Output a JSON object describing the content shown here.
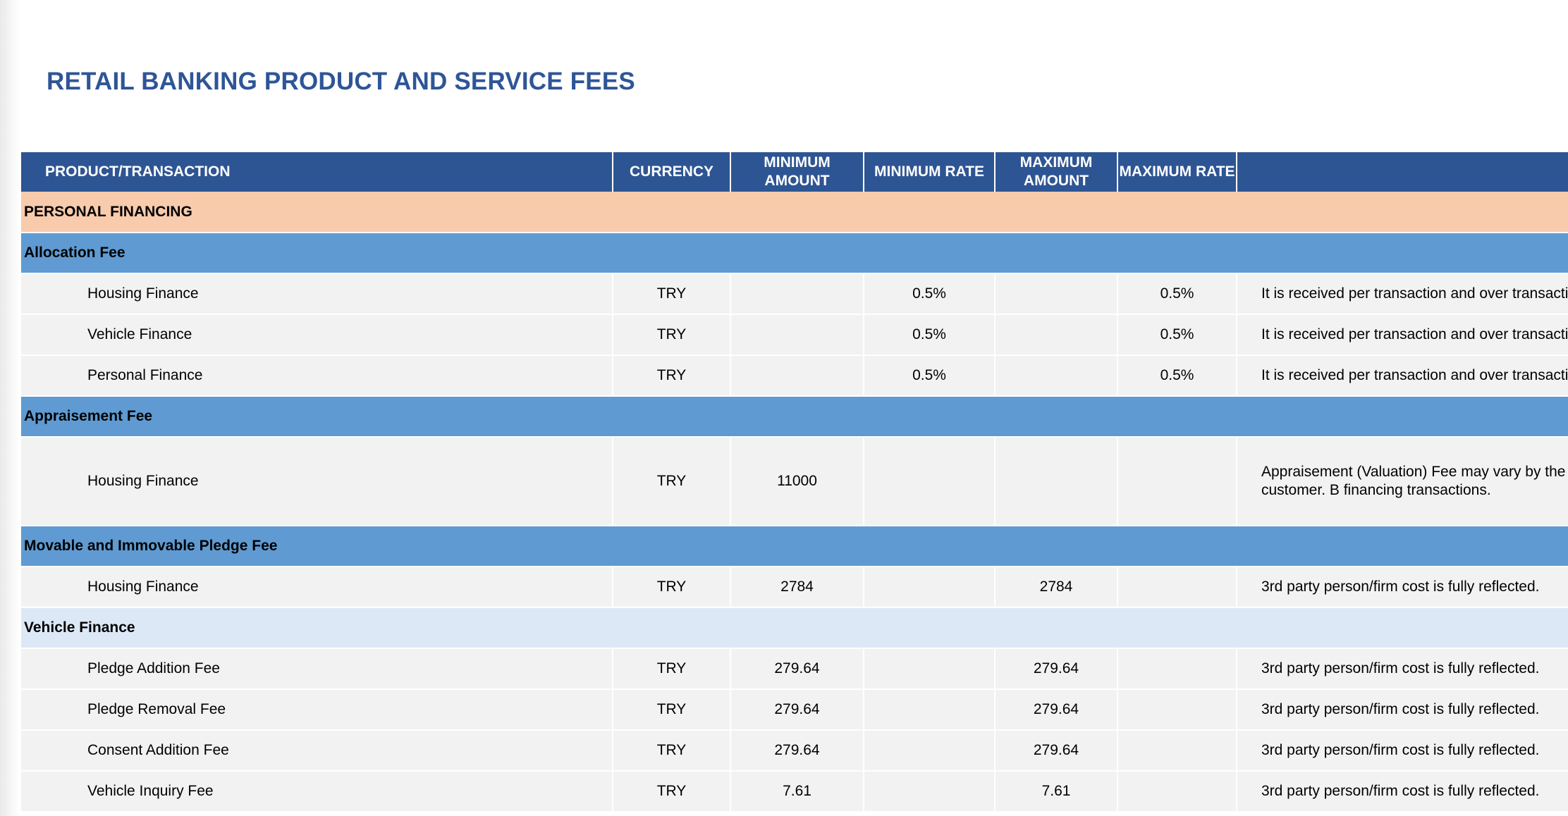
{
  "document": {
    "title": "RETAIL BANKING PRODUCT AND SERVICE FEES"
  },
  "table": {
    "headers": {
      "product": "PRODUCT/TRANSACTION",
      "currency": "CURRENCY",
      "min_amount": "MINIMUM AMOUNT",
      "min_rate": "MINIMUM RATE",
      "max_amount": "MAXIMUM AMOUNT",
      "max_rate": "MAXIMUM RATE",
      "description": ""
    },
    "section": "PERSONAL FINANCING",
    "groups": [
      {
        "name": "Allocation Fee",
        "rows": [
          {
            "product": "Housing Finance",
            "currency": "TRY",
            "min_amount": "",
            "min_rate": "0.5%",
            "max_amount": "",
            "max_rate": "0.5%",
            "description": "It is received per transaction and over transacti"
          },
          {
            "product": "Vehicle Finance",
            "currency": "TRY",
            "min_amount": "",
            "min_rate": "0.5%",
            "max_amount": "",
            "max_rate": "0.5%",
            "description": "It is received per transaction and over transacti"
          },
          {
            "product": "Personal Finance",
            "currency": "TRY",
            "min_amount": "",
            "min_rate": "0.5%",
            "max_amount": "",
            "max_rate": "0.5%",
            "description": "It is received per transaction and over transacti"
          }
        ]
      },
      {
        "name": "Appraisement Fee",
        "rows": [
          {
            "product": "Housing Finance",
            "currency": "TRY",
            "min_amount": "11000",
            "min_rate": "",
            "max_amount": "",
            "max_rate": "",
            "description": "Appraisement (Valuation) Fee may vary by the appraisal firm is received from the customer. B financing transactions."
          }
        ]
      },
      {
        "name": "Movable and Immovable Pledge Fee",
        "rows": [
          {
            "product": "Housing Finance",
            "currency": "TRY",
            "min_amount": "2784",
            "min_rate": "",
            "max_amount": "2784",
            "max_rate": "",
            "description": "3rd party person/firm cost is fully reflected."
          }
        ]
      },
      {
        "name": "Vehicle Finance",
        "rows": [
          {
            "product": "Pledge Addition Fee",
            "currency": "TRY",
            "min_amount": "279.64",
            "min_rate": "",
            "max_amount": "279.64",
            "max_rate": "",
            "description": "3rd party person/firm cost is fully reflected."
          },
          {
            "product": "Pledge Removal Fee",
            "currency": "TRY",
            "min_amount": "279.64",
            "min_rate": "",
            "max_amount": "279.64",
            "max_rate": "",
            "description": "3rd party person/firm cost is fully reflected."
          },
          {
            "product": "Consent Addition Fee",
            "currency": "TRY",
            "min_amount": "279.64",
            "min_rate": "",
            "max_amount": "279.64",
            "max_rate": "",
            "description": "3rd party person/firm cost is fully reflected."
          },
          {
            "product": "Vehicle Inquiry Fee",
            "currency": "TRY",
            "min_amount": "7.61",
            "min_rate": "",
            "max_amount": "7.61",
            "max_rate": "",
            "description": "3rd party person/firm cost is fully reflected."
          }
        ]
      }
    ]
  }
}
